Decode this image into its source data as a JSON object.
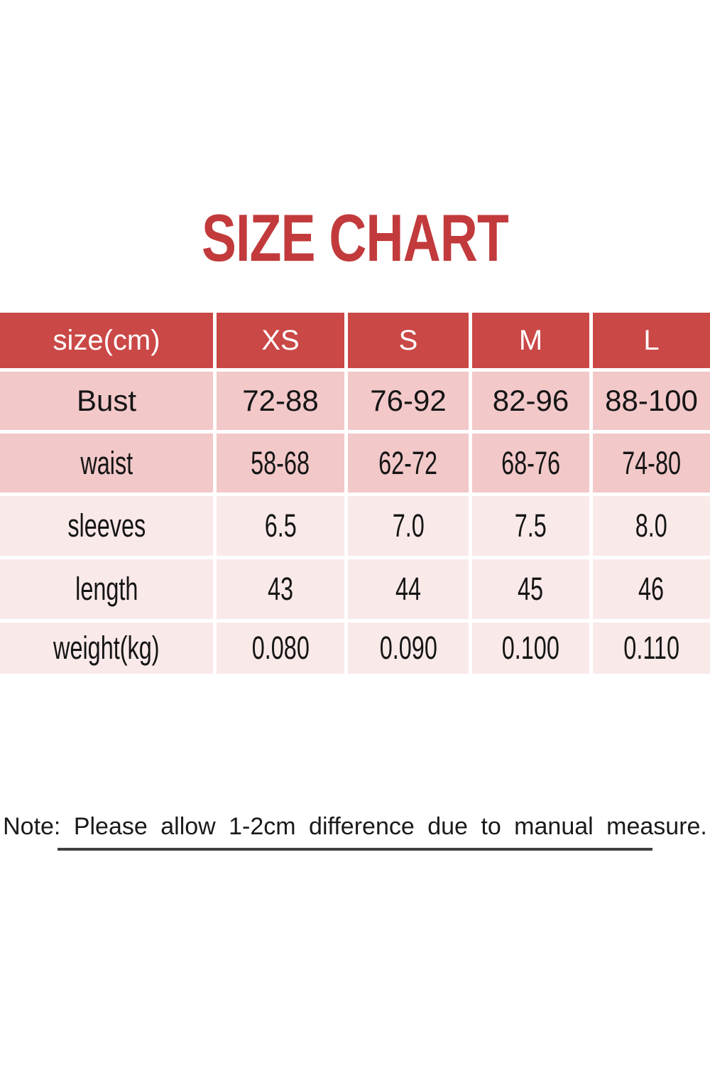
{
  "title": {
    "text": "SIZE CHART",
    "color": "#c23a3b"
  },
  "table": {
    "header": {
      "bg": "#ca4846",
      "text_color": "#ffffff",
      "columns": [
        "size(cm)",
        "XS",
        "S",
        "M",
        "L"
      ]
    },
    "row_colors": {
      "dark": "#f2c8c9",
      "light": "#fae9e9"
    },
    "rows": [
      {
        "label": "Bust",
        "values": [
          "72-88",
          "76-92",
          "82-96",
          "88-100"
        ]
      },
      {
        "label": "waist",
        "values": [
          "58-68",
          "62-72",
          "68-76",
          "74-80"
        ]
      },
      {
        "label": "sleeves",
        "values": [
          "6.5",
          "7.0",
          "7.5",
          "8.0"
        ]
      },
      {
        "label": "length",
        "values": [
          "43",
          "44",
          "45",
          "46"
        ]
      },
      {
        "label": "weight(kg)",
        "values": [
          "0.080",
          "0.090",
          "0.100",
          "0.110"
        ]
      }
    ]
  },
  "note": {
    "text": "Note: Please allow 1-2cm difference due to manual measure."
  },
  "chart_data": {
    "type": "table",
    "title": "SIZE CHART",
    "columns": [
      "size(cm)",
      "XS",
      "S",
      "M",
      "L"
    ],
    "rows": [
      [
        "Bust",
        "72-88",
        "76-92",
        "82-96",
        "88-100"
      ],
      [
        "waist",
        "58-68",
        "62-72",
        "68-76",
        "74-80"
      ],
      [
        "sleeves",
        "6.5",
        "7.0",
        "7.5",
        "8.0"
      ],
      [
        "length",
        "43",
        "44",
        "45",
        "46"
      ],
      [
        "weight(kg)",
        "0.080",
        "0.090",
        "0.100",
        "0.110"
      ]
    ],
    "note": "Note: Please allow 1-2cm difference due to manual measure.",
    "layout_hints": {
      "header_bg": "#ca4846",
      "body_bg_alt": [
        "#f2c8c9",
        "#fae9e9"
      ],
      "grid": "white 5px gaps"
    }
  }
}
